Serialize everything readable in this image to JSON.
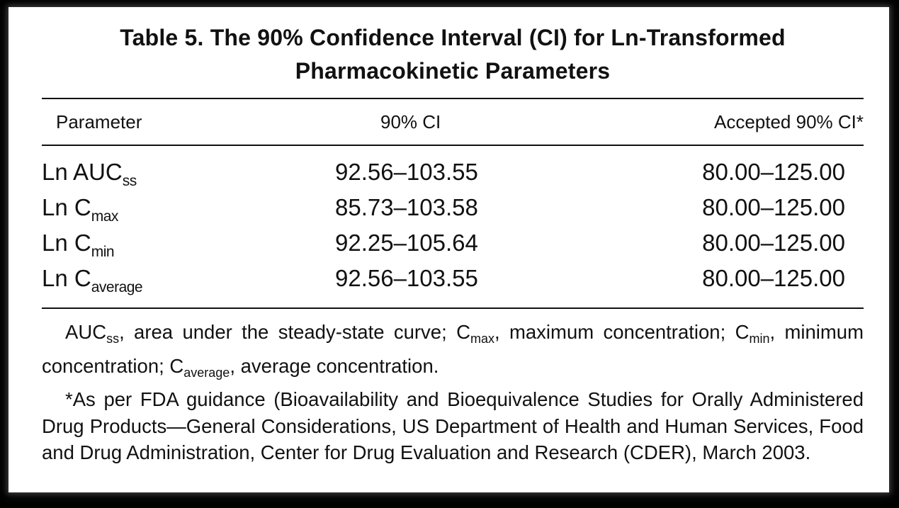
{
  "table": {
    "title": "Table 5.  The 90% Confidence Interval (CI) for Ln-Transformed\nPharmacokinetic Parameters",
    "headers": {
      "parameter": "Parameter",
      "ci": "90% CI",
      "accepted": "Accepted 90% CI*"
    },
    "rows": [
      {
        "param": "Ln AUC",
        "param_sub": "ss",
        "ci": "92.56–103.55",
        "accepted": "80.00–125.00"
      },
      {
        "param": "Ln C",
        "param_sub": "max",
        "ci": "85.73–103.58",
        "accepted": "80.00–125.00"
      },
      {
        "param": "Ln C",
        "param_sub": "min",
        "ci": "92.25–105.64",
        "accepted": "80.00–125.00"
      },
      {
        "param": "Ln C",
        "param_sub": "average",
        "ci": "92.56–103.55",
        "accepted": "80.00–125.00"
      }
    ],
    "notes": {
      "abbrev": {
        "auc": "AUC",
        "auc_sub": "ss",
        "auc_def": ", area under the steady-state curve; ",
        "cmax": "C",
        "cmax_sub": "max",
        "cmax_def": ", maximum concentration; ",
        "cmin": "C",
        "cmin_sub": "min",
        "cmin_def": ", minimum concentration; ",
        "cavg": "C",
        "cavg_sub": "average",
        "cavg_def": ", average concentration."
      },
      "footnote": "*As per FDA guidance (Bioavailability and Bioequivalence Studies for Orally Administered Drug Products—General Considerations, US Department of Health and Human Services, Food and Drug Administration, Center for Drug Evaluation and Research (CDER), March 2003."
    }
  }
}
